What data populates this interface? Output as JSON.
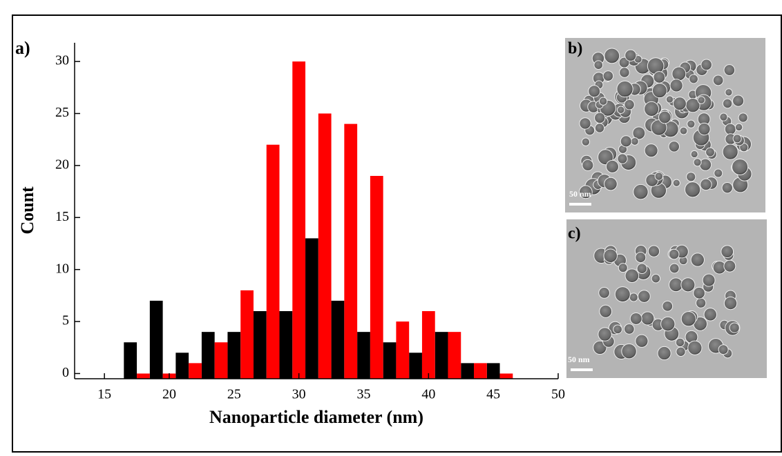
{
  "chart_data": {
    "type": "bar",
    "panel_labels": [
      "a)",
      "b)",
      "c)"
    ],
    "scale_bar_labels": [
      "50 nm",
      "50 nm"
    ],
    "xlabel": "Nanoparticle diameter (nm)",
    "ylabel": "Count",
    "series": [
      {
        "color": "#000000",
        "x": [
          17,
          19,
          21,
          23,
          25,
          27,
          29,
          31,
          33,
          35,
          37,
          39,
          41,
          43,
          45
        ],
        "values": [
          3,
          7,
          2,
          4,
          4,
          6,
          6,
          13,
          7,
          4,
          3,
          2,
          4,
          1,
          1
        ]
      },
      {
        "color": "#ff0000",
        "x": [
          18,
          20,
          22,
          24,
          26,
          28,
          30,
          32,
          34,
          36,
          38,
          40,
          42,
          44,
          46
        ],
        "values": [
          0,
          0,
          1,
          3,
          8,
          22,
          30,
          25,
          24,
          19,
          5,
          6,
          4,
          1,
          0
        ]
      }
    ],
    "xlim": [
      12.7,
      50
    ],
    "xticks": [
      15,
      20,
      25,
      30,
      35,
      40,
      45,
      50
    ],
    "ylim": [
      -0.5,
      31.8
    ],
    "yticks": [
      0,
      5,
      10,
      15,
      20,
      25,
      30
    ]
  }
}
